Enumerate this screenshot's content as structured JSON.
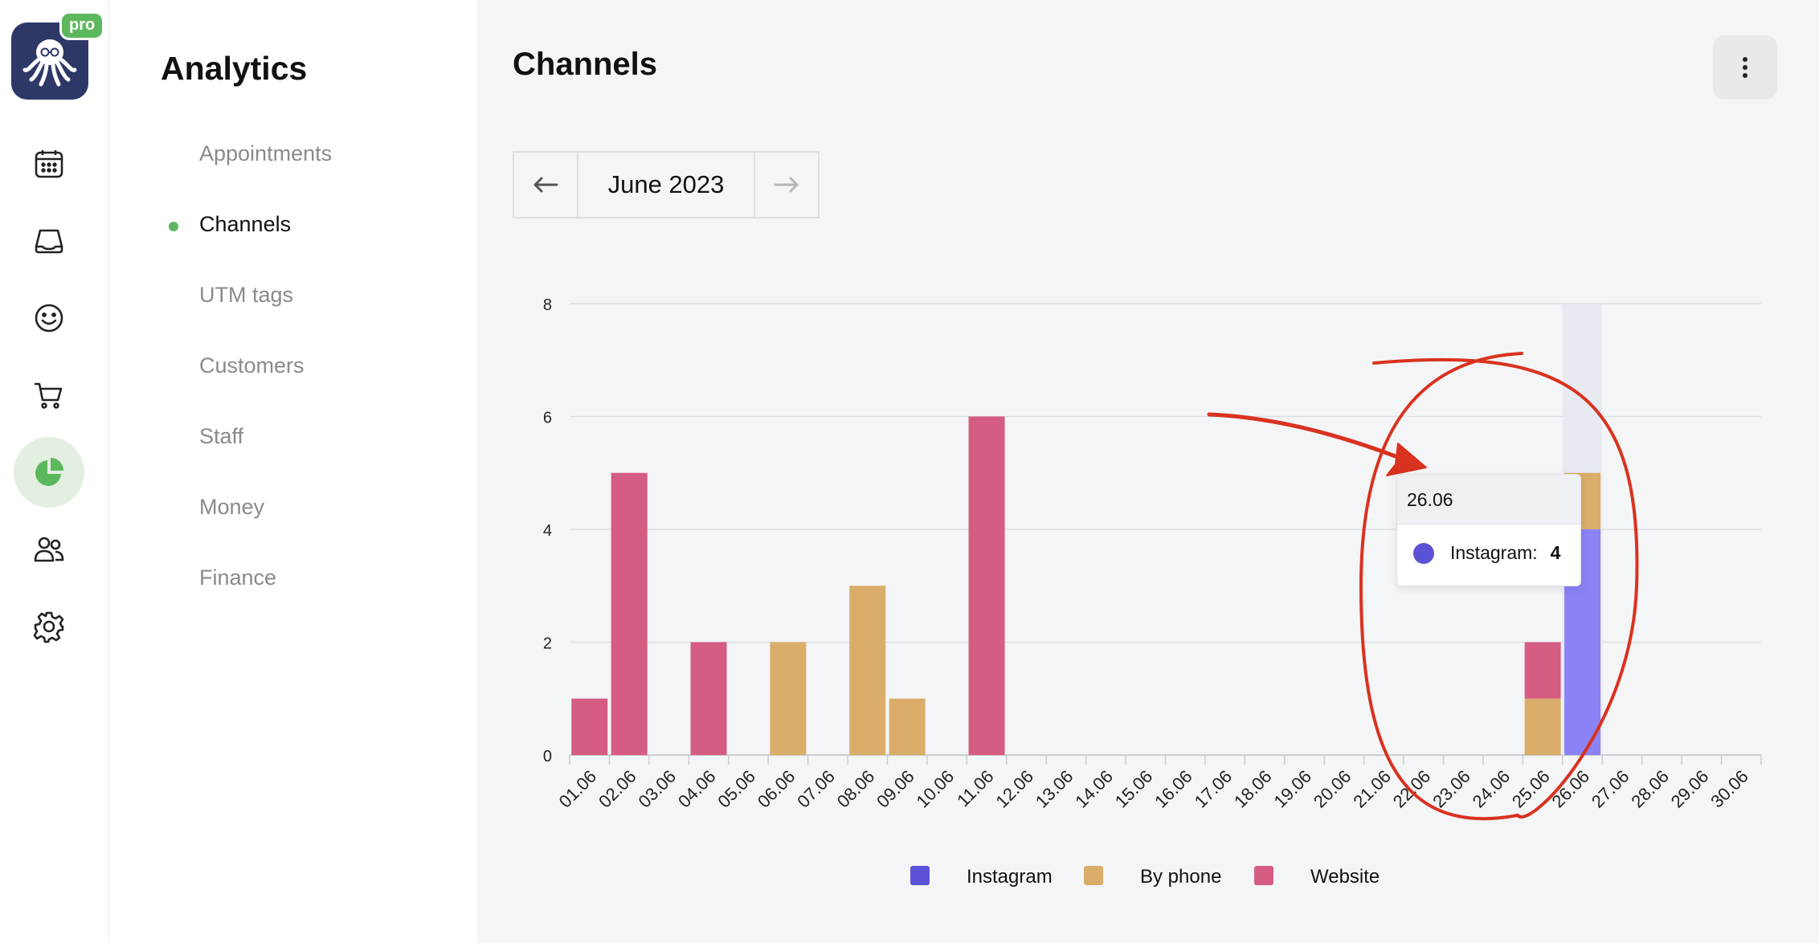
{
  "rail": {
    "badge": "pro",
    "icons": [
      "calendar-icon",
      "tray-icon",
      "smiley-icon",
      "cart-icon",
      "pie-chart-icon",
      "users-icon",
      "gear-icon"
    ],
    "active": "pie-chart-icon"
  },
  "sidebar": {
    "title": "Analytics",
    "items": [
      {
        "label": "Appointments"
      },
      {
        "label": "Channels"
      },
      {
        "label": "UTM tags"
      },
      {
        "label": "Customers"
      },
      {
        "label": "Staff"
      },
      {
        "label": "Money"
      },
      {
        "label": "Finance"
      }
    ],
    "active_index": 1
  },
  "header": {
    "title": "Channels"
  },
  "month_nav": {
    "label": "June 2023"
  },
  "colors": {
    "instagram": "#5b52d6",
    "instagram_highlight": "#8b83f5",
    "by_phone": "#dbad6a",
    "website": "#d55c82",
    "annotation": "#d9321f",
    "accent": "#5cb85c"
  },
  "chart_data": {
    "type": "bar",
    "stacked": true,
    "categories": [
      "01.06",
      "02.06",
      "03.06",
      "04.06",
      "05.06",
      "06.06",
      "07.06",
      "08.06",
      "09.06",
      "10.06",
      "11.06",
      "12.06",
      "13.06",
      "14.06",
      "15.06",
      "16.06",
      "17.06",
      "18.06",
      "19.06",
      "20.06",
      "21.06",
      "22.06",
      "23.06",
      "24.06",
      "25.06",
      "26.06",
      "27.06",
      "28.06",
      "29.06",
      "30.06"
    ],
    "series": [
      {
        "name": "Instagram",
        "values": [
          0,
          0,
          0,
          0,
          0,
          0,
          0,
          0,
          0,
          0,
          0,
          0,
          0,
          0,
          0,
          0,
          0,
          0,
          0,
          0,
          0,
          0,
          0,
          0,
          0,
          4,
          0,
          0,
          0,
          0
        ]
      },
      {
        "name": "By phone",
        "values": [
          0,
          0,
          0,
          0,
          0,
          2,
          0,
          3,
          1,
          0,
          0,
          0,
          0,
          0,
          0,
          0,
          0,
          0,
          0,
          0,
          0,
          0,
          0,
          0,
          1,
          1,
          0,
          0,
          0,
          0
        ]
      },
      {
        "name": "Website",
        "values": [
          1,
          5,
          0,
          2,
          0,
          0,
          0,
          0,
          0,
          0,
          6,
          0,
          0,
          0,
          0,
          0,
          0,
          0,
          0,
          0,
          0,
          0,
          0,
          0,
          1,
          0,
          0,
          0,
          0,
          0
        ]
      }
    ],
    "y_ticks": [
      0,
      2,
      4,
      6,
      8
    ],
    "ylim": [
      0,
      8
    ],
    "highlighted_category": "26.06",
    "legend": [
      "Instagram",
      "By phone",
      "Website"
    ],
    "legend_position": "bottom-center",
    "tooltip": {
      "title": "26.06",
      "series": "Instagram:",
      "value": "4"
    }
  }
}
